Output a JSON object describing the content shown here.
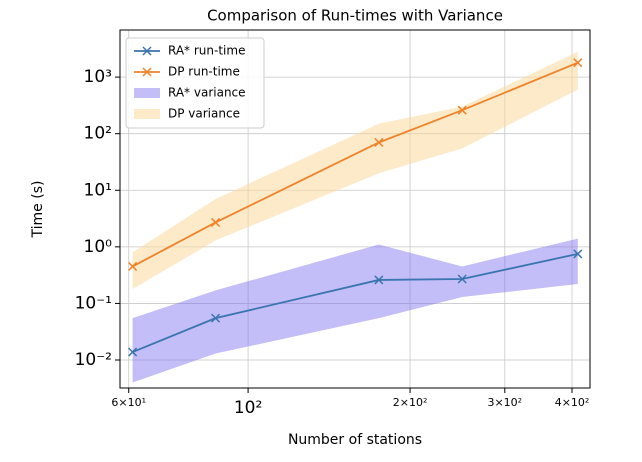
{
  "chart_data": {
    "type": "line",
    "title": "Comparison of Run-times with Variance",
    "x_label": "Number of stations",
    "y_label": "Time (s)",
    "x": [
      61,
      87,
      175,
      250,
      410
    ],
    "series": [
      {
        "name": "RA* run-time",
        "color": "#3a75b0",
        "values": [
          0.0138,
          0.055,
          0.26,
          0.27,
          0.75
        ]
      },
      {
        "name": "DP run-time",
        "color": "#f0822a",
        "values": [
          0.45,
          2.7,
          70,
          260,
          1800
        ]
      }
    ],
    "bands": [
      {
        "name": "RA* variance",
        "color": "#7b6cf0",
        "lower": [
          0.004,
          0.013,
          0.055,
          0.13,
          0.22
        ],
        "upper": [
          0.055,
          0.17,
          1.1,
          0.45,
          1.4
        ]
      },
      {
        "name": "DP variance",
        "color": "#f9d89a",
        "lower": [
          0.18,
          1.3,
          20,
          55,
          600
        ],
        "upper": [
          0.8,
          7,
          150,
          300,
          2800
        ]
      }
    ],
    "xscale": "log",
    "yscale": "log",
    "xlim": [
      57.8,
      432
    ],
    "ylim": [
      0.0032,
      6800
    ],
    "xticks": [
      {
        "value": 60,
        "label": "6×10¹"
      },
      {
        "value": 100,
        "label": "10²"
      },
      {
        "value": 200,
        "label": "2×10²"
      },
      {
        "value": 300,
        "label": "3×10²"
      },
      {
        "value": 400,
        "label": "4×10²"
      }
    ],
    "yticks": [
      {
        "value": 0.01,
        "label": "10⁻²"
      },
      {
        "value": 0.1,
        "label": "10⁻¹"
      },
      {
        "value": 1,
        "label": "10⁰"
      },
      {
        "value": 10,
        "label": "10¹"
      },
      {
        "value": 100,
        "label": "10²"
      },
      {
        "value": 1000,
        "label": "10³"
      }
    ],
    "grid": true,
    "legend": "upper left"
  }
}
